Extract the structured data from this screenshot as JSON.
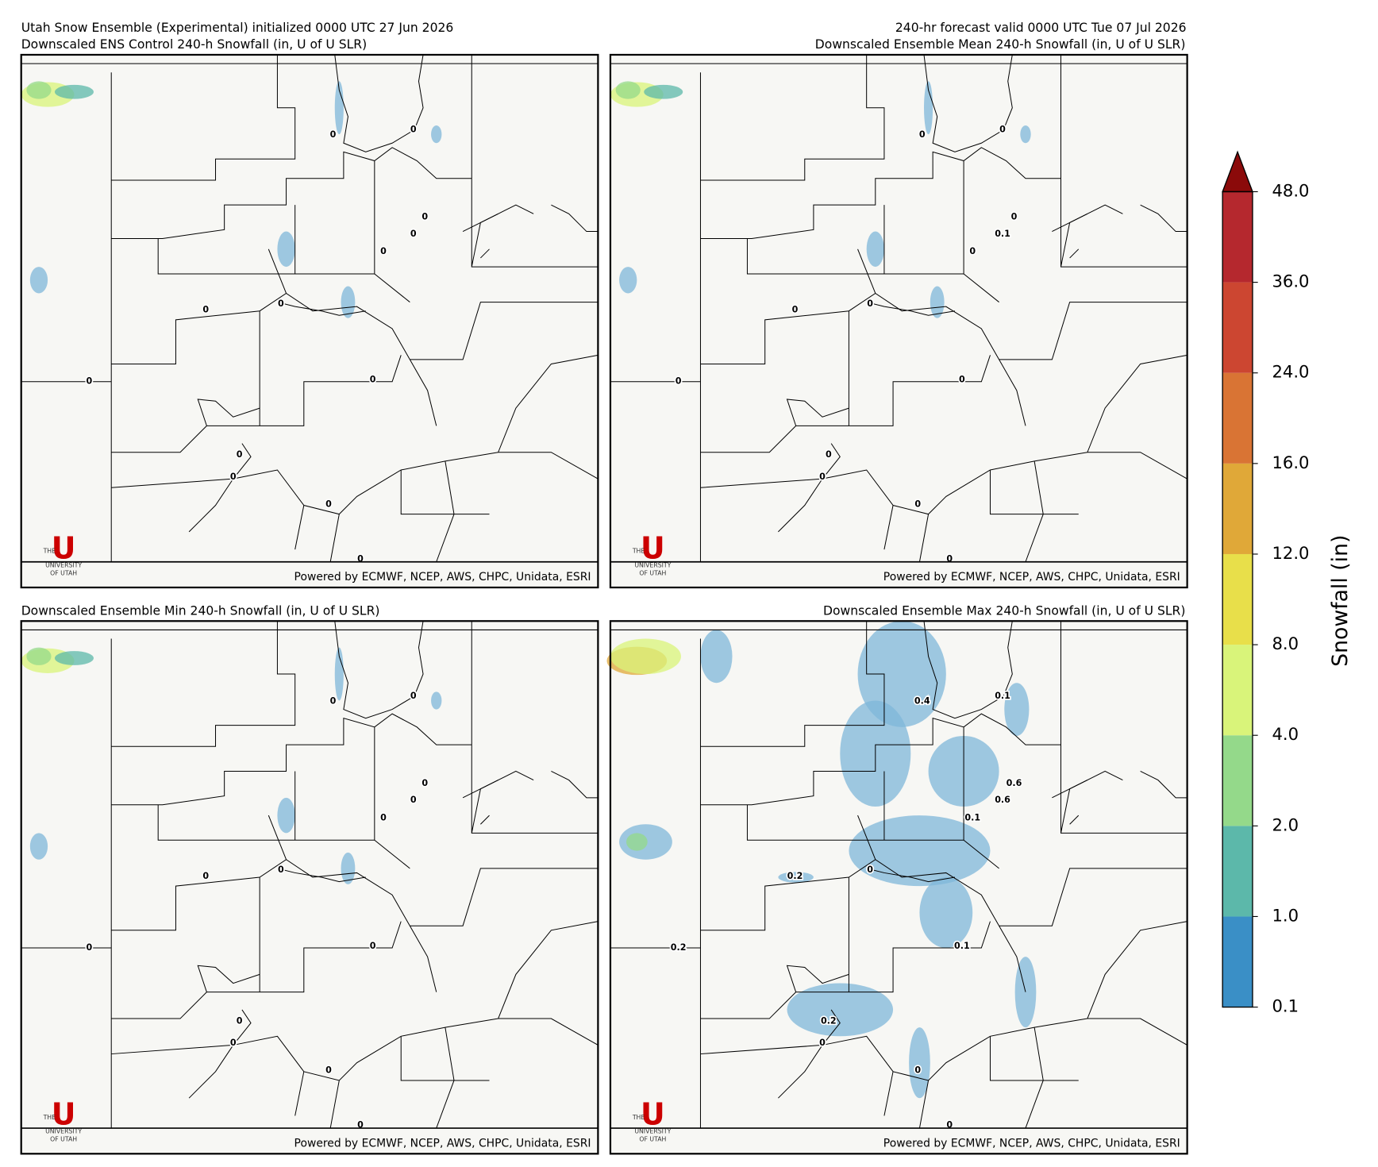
{
  "header": {
    "left": "Utah Snow Ensemble (Experimental) initialized 0000 UTC 27 Jun 2026",
    "right": "240-hr forecast valid 0000 UTC Tue 07 Jul 2026"
  },
  "panels": [
    {
      "title": "Downscaled ENS Control 240-h Snowfall (in, U of U SLR)",
      "contour_labels": [
        0,
        0,
        0,
        0,
        0,
        0,
        0,
        0,
        0,
        0,
        0,
        0,
        0
      ]
    },
    {
      "title": "Downscaled Ensemble Mean 240-h Snowfall (in, U of U SLR)",
      "contour_labels": [
        0,
        0,
        0,
        0.1,
        0,
        0,
        0,
        0,
        0,
        0,
        0,
        0,
        0
      ]
    },
    {
      "title": "Downscaled Ensemble Min 240-h Snowfall (in, U of U SLR)",
      "contour_labels": [
        0,
        0,
        0,
        0,
        0,
        0,
        0,
        0,
        0,
        0,
        0,
        0,
        0
      ]
    },
    {
      "title": "Downscaled Ensemble Max 240-h Snowfall (in, U of U SLR)",
      "contour_labels": [
        0.4,
        0.1,
        0.6,
        0.6,
        0.1,
        0,
        0.2,
        0.2,
        0.1,
        0.2,
        0,
        0,
        0
      ]
    }
  ],
  "footer": "Powered by ECMWF, NCEP, AWS, CHPC, Unidata, ESRI",
  "logo": {
    "mark": "U",
    "lines": [
      "THE",
      "UNIVERSITY",
      "OF UTAH"
    ]
  },
  "colorbar": {
    "label": "Snowfall (in)",
    "ticks": [
      0.1,
      {
        "value": 1,
        "label": "1.0"
      },
      {
        "value": 2,
        "label": "2.0"
      },
      {
        "value": 4,
        "label": "4.0"
      },
      {
        "value": 8,
        "label": "8.0"
      },
      {
        "value": 12,
        "label": "12.0"
      },
      {
        "value": 16,
        "label": "16.0"
      },
      {
        "value": 24,
        "label": "24.0"
      },
      {
        "value": 36,
        "label": "36.0"
      },
      {
        "value": 48,
        "label": "48.0"
      }
    ],
    "colors": [
      "#3a8fc6",
      "#5cb8aa",
      "#94d98a",
      "#d9f47a",
      "#e8df4a",
      "#e0a838",
      "#d97434",
      "#cc4631",
      "#b5282e"
    ],
    "extend_color": "#8b0a0a"
  }
}
